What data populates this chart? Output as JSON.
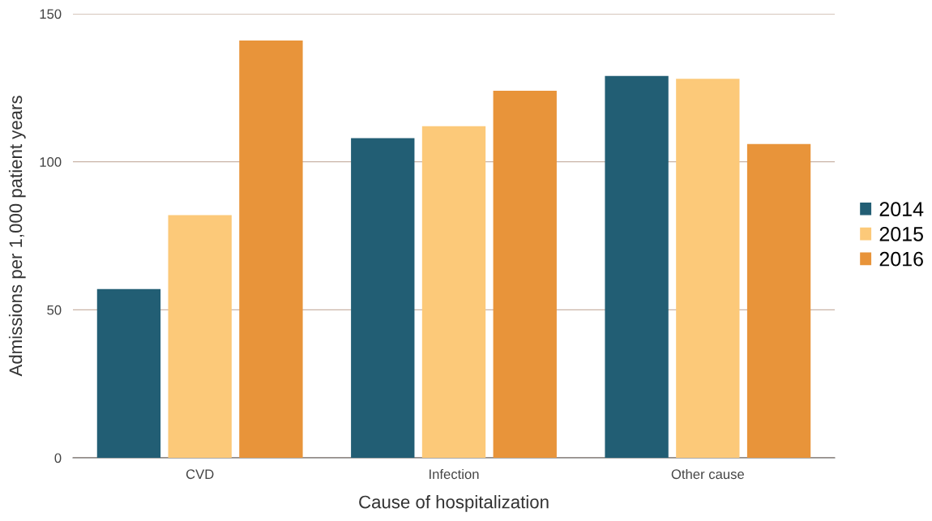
{
  "chart_data": {
    "type": "bar",
    "xlabel": "Cause of hospitalization",
    "ylabel": "Admissions per 1,000 patient years",
    "categories": [
      "CVD",
      "Infection",
      "Other cause"
    ],
    "series": [
      {
        "name": "2014",
        "color": "#225e74",
        "values": [
          57,
          108,
          129
        ]
      },
      {
        "name": "2015",
        "color": "#fcc979",
        "values": [
          82,
          112,
          128
        ]
      },
      {
        "name": "2016",
        "color": "#e8943a",
        "values": [
          141,
          124,
          106
        ]
      }
    ],
    "ylim": [
      0,
      150
    ],
    "yticks": [
      0,
      50,
      100,
      150
    ],
    "grid": "y",
    "legend": "right"
  }
}
